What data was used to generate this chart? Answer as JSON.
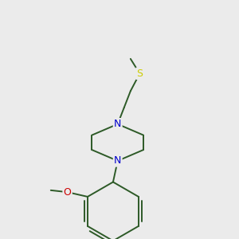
{
  "bg_color": "#ebebeb",
  "bond_color": "#2d5a27",
  "nitrogen_color": "#0000cc",
  "oxygen_color": "#cc0000",
  "sulfur_color": "#cccc00",
  "line_width": 1.4,
  "font_size": 9,
  "figsize": [
    3.0,
    3.0
  ],
  "dpi": 100,
  "xlim": [
    50,
    250
  ],
  "ylim": [
    20,
    280
  ]
}
